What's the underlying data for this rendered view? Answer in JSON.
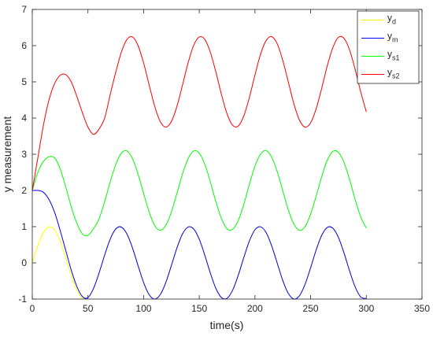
{
  "chart_data": {
    "type": "line",
    "xlabel": "time(s)",
    "ylabel": "y measurement",
    "xlim": [
      0,
      350
    ],
    "ylim": [
      -1,
      7
    ],
    "xticks": [
      0,
      50,
      100,
      150,
      200,
      250,
      300,
      350
    ],
    "yticks": [
      -1,
      0,
      1,
      2,
      3,
      4,
      5,
      6,
      7
    ],
    "legend": "upper right",
    "x": [
      0,
      5,
      10,
      15,
      20,
      25,
      30,
      35,
      40,
      45,
      50,
      55,
      60,
      65,
      70,
      75,
      80,
      85,
      90,
      95,
      100,
      105,
      110,
      115,
      120,
      125,
      130,
      135,
      140,
      145,
      150,
      155,
      160,
      165,
      170,
      175,
      180,
      185,
      190,
      195,
      200,
      205,
      210,
      215,
      220,
      225,
      230,
      235,
      240,
      245,
      250,
      255,
      260,
      265,
      270,
      275,
      280,
      285,
      290,
      295,
      300
    ],
    "series": [
      {
        "name": "yd",
        "color": "#ffff00",
        "values": [
          0,
          0.479,
          0.841,
          0.997,
          0.909,
          0.598,
          0.141,
          -0.351,
          -0.757,
          -0.978,
          -0.959,
          -0.706,
          -0.279,
          0.215,
          0.657,
          0.938,
          0.989,
          0.798,
          0.412,
          -0.075,
          -0.544,
          -0.88,
          -1.0,
          -0.875,
          -0.537,
          -0.066,
          0.42,
          0.804,
          0.991,
          0.935,
          0.65,
          0.207,
          -0.288,
          -0.712,
          -0.961,
          -0.976,
          -0.751,
          -0.342,
          0.15,
          0.605,
          0.913,
          0.996,
          0.837,
          0.472,
          -0.009,
          -0.487,
          -0.846,
          -0.998,
          -0.906,
          -0.592,
          -0.132,
          0.359,
          0.763,
          0.98,
          0.956,
          0.7,
          0.271,
          -0.224,
          -0.664,
          -0.941,
          -0.988
        ]
      },
      {
        "name": "ym",
        "color": "#0000ff",
        "values": [
          2,
          2,
          1.95,
          1.75,
          1.4,
          0.9,
          0.35,
          -0.2,
          -0.65,
          -0.93,
          -0.96,
          -0.706,
          -0.279,
          0.215,
          0.657,
          0.938,
          0.989,
          0.798,
          0.412,
          -0.075,
          -0.544,
          -0.88,
          -1.0,
          -0.875,
          -0.537,
          -0.066,
          0.42,
          0.804,
          0.991,
          0.935,
          0.65,
          0.207,
          -0.288,
          -0.712,
          -0.961,
          -0.976,
          -0.751,
          -0.342,
          0.15,
          0.605,
          0.913,
          0.996,
          0.837,
          0.472,
          -0.009,
          -0.487,
          -0.846,
          -0.998,
          -0.906,
          -0.592,
          -0.132,
          0.359,
          0.763,
          0.98,
          0.956,
          0.7,
          0.271,
          -0.224,
          -0.664,
          -0.941,
          -0.988
        ]
      },
      {
        "name": "ys1",
        "color": "#00ff00",
        "values": [
          2,
          2.5,
          2.8,
          2.93,
          2.9,
          2.6,
          2.1,
          1.55,
          1.1,
          0.8,
          0.76,
          0.945,
          1.22,
          1.69,
          2.24,
          2.72,
          3.03,
          3.09,
          2.88,
          2.45,
          1.92,
          1.4,
          1.03,
          0.9,
          1.04,
          1.41,
          1.93,
          2.46,
          2.88,
          3.09,
          3.03,
          2.72,
          2.23,
          1.68,
          1.22,
          0.94,
          0.93,
          1.17,
          1.62,
          2.17,
          2.67,
          3.0,
          3.1,
          2.92,
          2.52,
          1.99,
          1.46,
          1.07,
          0.9,
          1.0,
          1.35,
          1.85,
          2.39,
          2.84,
          3.08,
          3.05,
          2.77,
          2.3,
          1.75,
          1.27,
          0.96
        ]
      },
      {
        "name": "ys2",
        "color": "#ff0000",
        "values": [
          2,
          2.9,
          3.8,
          4.5,
          4.95,
          5.18,
          5.2,
          5.0,
          4.6,
          4.15,
          3.75,
          3.55,
          3.7,
          4.0,
          4.65,
          5.27,
          5.82,
          6.17,
          6.24,
          6.0,
          5.52,
          4.91,
          4.32,
          3.9,
          3.75,
          3.91,
          4.33,
          4.92,
          5.53,
          6.01,
          6.24,
          6.17,
          5.81,
          5.26,
          4.64,
          4.11,
          3.8,
          3.78,
          4.06,
          4.57,
          5.19,
          5.76,
          6.14,
          6.25,
          6.05,
          5.59,
          4.99,
          4.39,
          3.94,
          3.75,
          3.87,
          4.26,
          4.83,
          5.45,
          5.95,
          6.23,
          6.2,
          5.88,
          5.34,
          4.72,
          4.17
        ]
      }
    ]
  }
}
